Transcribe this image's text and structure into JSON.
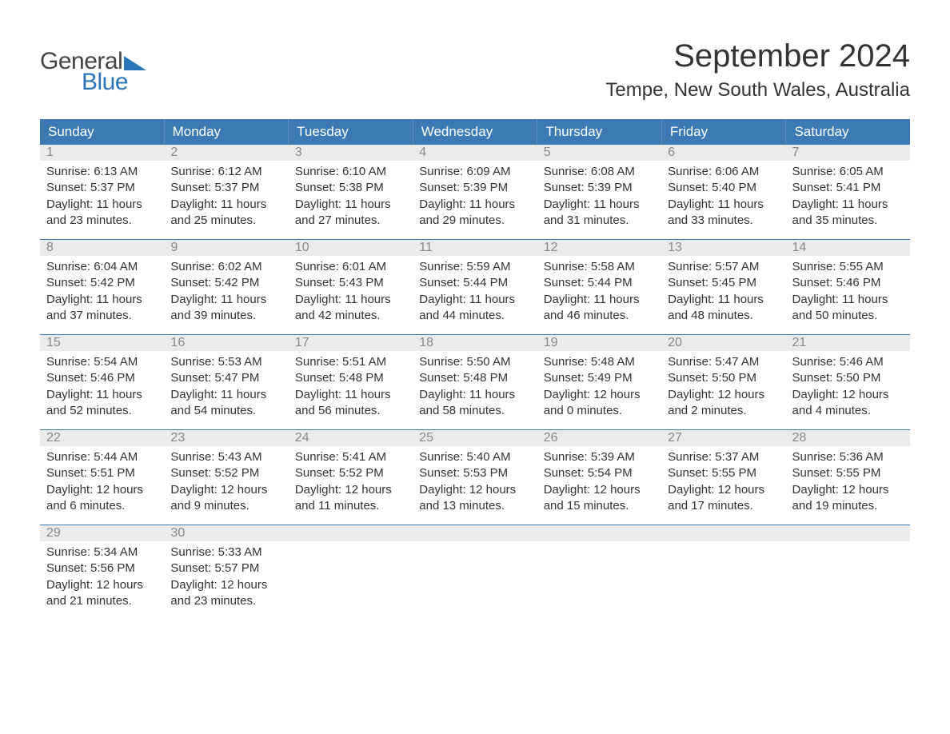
{
  "logo": {
    "top_text": "General",
    "bottom_text": "Blue",
    "icon_color": "#2a74b8",
    "top_color": "#444444",
    "bottom_color": "#2a74b8"
  },
  "title": "September 2024",
  "location": "Tempe, New South Wales, Australia",
  "colors": {
    "header_bg": "#3b7ab5",
    "header_text": "#ffffff",
    "daynum_bg": "#ebebeb",
    "daynum_text": "#888888",
    "week_border": "#3b7ab5",
    "body_text": "#333333",
    "page_bg": "#ffffff"
  },
  "day_names": [
    "Sunday",
    "Monday",
    "Tuesday",
    "Wednesday",
    "Thursday",
    "Friday",
    "Saturday"
  ],
  "weeks": [
    [
      {
        "n": "1",
        "sunrise": "Sunrise: 6:13 AM",
        "sunset": "Sunset: 5:37 PM",
        "daylight": "Daylight: 11 hours and 23 minutes."
      },
      {
        "n": "2",
        "sunrise": "Sunrise: 6:12 AM",
        "sunset": "Sunset: 5:37 PM",
        "daylight": "Daylight: 11 hours and 25 minutes."
      },
      {
        "n": "3",
        "sunrise": "Sunrise: 6:10 AM",
        "sunset": "Sunset: 5:38 PM",
        "daylight": "Daylight: 11 hours and 27 minutes."
      },
      {
        "n": "4",
        "sunrise": "Sunrise: 6:09 AM",
        "sunset": "Sunset: 5:39 PM",
        "daylight": "Daylight: 11 hours and 29 minutes."
      },
      {
        "n": "5",
        "sunrise": "Sunrise: 6:08 AM",
        "sunset": "Sunset: 5:39 PM",
        "daylight": "Daylight: 11 hours and 31 minutes."
      },
      {
        "n": "6",
        "sunrise": "Sunrise: 6:06 AM",
        "sunset": "Sunset: 5:40 PM",
        "daylight": "Daylight: 11 hours and 33 minutes."
      },
      {
        "n": "7",
        "sunrise": "Sunrise: 6:05 AM",
        "sunset": "Sunset: 5:41 PM",
        "daylight": "Daylight: 11 hours and 35 minutes."
      }
    ],
    [
      {
        "n": "8",
        "sunrise": "Sunrise: 6:04 AM",
        "sunset": "Sunset: 5:42 PM",
        "daylight": "Daylight: 11 hours and 37 minutes."
      },
      {
        "n": "9",
        "sunrise": "Sunrise: 6:02 AM",
        "sunset": "Sunset: 5:42 PM",
        "daylight": "Daylight: 11 hours and 39 minutes."
      },
      {
        "n": "10",
        "sunrise": "Sunrise: 6:01 AM",
        "sunset": "Sunset: 5:43 PM",
        "daylight": "Daylight: 11 hours and 42 minutes."
      },
      {
        "n": "11",
        "sunrise": "Sunrise: 5:59 AM",
        "sunset": "Sunset: 5:44 PM",
        "daylight": "Daylight: 11 hours and 44 minutes."
      },
      {
        "n": "12",
        "sunrise": "Sunrise: 5:58 AM",
        "sunset": "Sunset: 5:44 PM",
        "daylight": "Daylight: 11 hours and 46 minutes."
      },
      {
        "n": "13",
        "sunrise": "Sunrise: 5:57 AM",
        "sunset": "Sunset: 5:45 PM",
        "daylight": "Daylight: 11 hours and 48 minutes."
      },
      {
        "n": "14",
        "sunrise": "Sunrise: 5:55 AM",
        "sunset": "Sunset: 5:46 PM",
        "daylight": "Daylight: 11 hours and 50 minutes."
      }
    ],
    [
      {
        "n": "15",
        "sunrise": "Sunrise: 5:54 AM",
        "sunset": "Sunset: 5:46 PM",
        "daylight": "Daylight: 11 hours and 52 minutes."
      },
      {
        "n": "16",
        "sunrise": "Sunrise: 5:53 AM",
        "sunset": "Sunset: 5:47 PM",
        "daylight": "Daylight: 11 hours and 54 minutes."
      },
      {
        "n": "17",
        "sunrise": "Sunrise: 5:51 AM",
        "sunset": "Sunset: 5:48 PM",
        "daylight": "Daylight: 11 hours and 56 minutes."
      },
      {
        "n": "18",
        "sunrise": "Sunrise: 5:50 AM",
        "sunset": "Sunset: 5:48 PM",
        "daylight": "Daylight: 11 hours and 58 minutes."
      },
      {
        "n": "19",
        "sunrise": "Sunrise: 5:48 AM",
        "sunset": "Sunset: 5:49 PM",
        "daylight": "Daylight: 12 hours and 0 minutes."
      },
      {
        "n": "20",
        "sunrise": "Sunrise: 5:47 AM",
        "sunset": "Sunset: 5:50 PM",
        "daylight": "Daylight: 12 hours and 2 minutes."
      },
      {
        "n": "21",
        "sunrise": "Sunrise: 5:46 AM",
        "sunset": "Sunset: 5:50 PM",
        "daylight": "Daylight: 12 hours and 4 minutes."
      }
    ],
    [
      {
        "n": "22",
        "sunrise": "Sunrise: 5:44 AM",
        "sunset": "Sunset: 5:51 PM",
        "daylight": "Daylight: 12 hours and 6 minutes."
      },
      {
        "n": "23",
        "sunrise": "Sunrise: 5:43 AM",
        "sunset": "Sunset: 5:52 PM",
        "daylight": "Daylight: 12 hours and 9 minutes."
      },
      {
        "n": "24",
        "sunrise": "Sunrise: 5:41 AM",
        "sunset": "Sunset: 5:52 PM",
        "daylight": "Daylight: 12 hours and 11 minutes."
      },
      {
        "n": "25",
        "sunrise": "Sunrise: 5:40 AM",
        "sunset": "Sunset: 5:53 PM",
        "daylight": "Daylight: 12 hours and 13 minutes."
      },
      {
        "n": "26",
        "sunrise": "Sunrise: 5:39 AM",
        "sunset": "Sunset: 5:54 PM",
        "daylight": "Daylight: 12 hours and 15 minutes."
      },
      {
        "n": "27",
        "sunrise": "Sunrise: 5:37 AM",
        "sunset": "Sunset: 5:55 PM",
        "daylight": "Daylight: 12 hours and 17 minutes."
      },
      {
        "n": "28",
        "sunrise": "Sunrise: 5:36 AM",
        "sunset": "Sunset: 5:55 PM",
        "daylight": "Daylight: 12 hours and 19 minutes."
      }
    ],
    [
      {
        "n": "29",
        "sunrise": "Sunrise: 5:34 AM",
        "sunset": "Sunset: 5:56 PM",
        "daylight": "Daylight: 12 hours and 21 minutes."
      },
      {
        "n": "30",
        "sunrise": "Sunrise: 5:33 AM",
        "sunset": "Sunset: 5:57 PM",
        "daylight": "Daylight: 12 hours and 23 minutes."
      },
      {
        "empty": true
      },
      {
        "empty": true
      },
      {
        "empty": true
      },
      {
        "empty": true
      },
      {
        "empty": true
      }
    ]
  ]
}
